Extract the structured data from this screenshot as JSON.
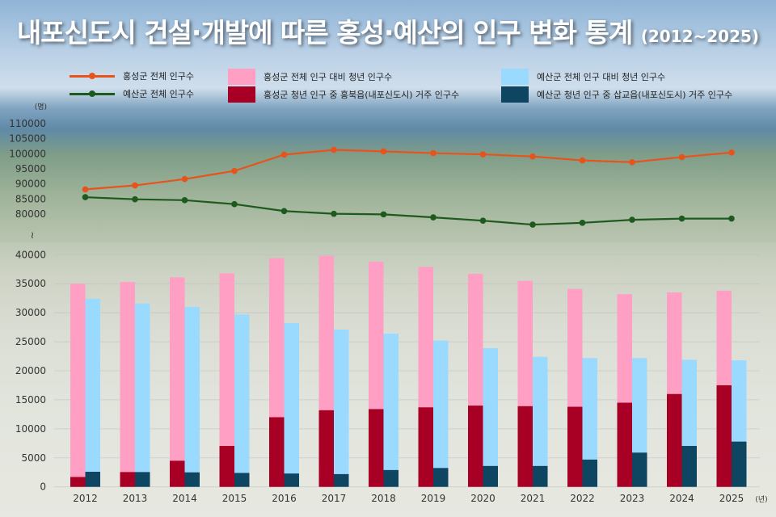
{
  "title": {
    "main": "내포신도시 건설·개발에 따른 홍성·예산의 인구 변화 통계",
    "sub": "(2012~2025)"
  },
  "colors": {
    "hongseong_total": "#e8531c",
    "yesan_total": "#1d5a1e",
    "hongseong_youth": "#ff9fc3",
    "hongbuk": "#a80024",
    "yesan_youth": "#9bdaff",
    "sapgyo": "#0e4560"
  },
  "chart_data": {
    "type": "bar+line",
    "title": "내포신도시 건설·개발에 따른 홍성·예산의 인구 변화 통계 (2012~2025)",
    "y_unit": "(명)",
    "x_unit": "(년)",
    "axis_break_symbol": "≀",
    "categories": [
      "2012",
      "2013",
      "2014",
      "2015",
      "2016",
      "2017",
      "2018",
      "2019",
      "2020",
      "2021",
      "2022",
      "2023",
      "2024",
      "2025"
    ],
    "upper_axis": {
      "ticks": [
        80000,
        85000,
        90000,
        95000,
        100000,
        105000,
        110000
      ],
      "range": [
        80000,
        110000
      ]
    },
    "lower_axis": {
      "ticks": [
        0,
        5000,
        10000,
        15000,
        20000,
        25000,
        30000,
        35000,
        40000
      ],
      "range": [
        0,
        40000
      ]
    },
    "grid": true,
    "legend_position": "top",
    "series": [
      {
        "name": "홍성군 전체 인구수",
        "type": "line",
        "color": "#e8531c",
        "values": [
          88200,
          89500,
          91600,
          94300,
          99700,
          101300,
          100800,
          100200,
          99800,
          99100,
          97800,
          97200,
          98900,
          100400
        ]
      },
      {
        "name": "예산군 전체 인구수",
        "type": "line",
        "color": "#1d5a1e",
        "values": [
          85600,
          84900,
          84600,
          83300,
          81000,
          80100,
          79900,
          78900,
          77800,
          76500,
          77100,
          78100,
          78500,
          78500
        ]
      },
      {
        "name": "홍성군 전체 인구 대비 청년 인구수",
        "type": "bar",
        "color": "#ff9fc3",
        "values": [
          35000,
          35300,
          36100,
          36800,
          39400,
          39800,
          38800,
          37900,
          36700,
          35500,
          34100,
          33200,
          33500,
          33800
        ]
      },
      {
        "name": "홍성군 청년 인구 중 홍북읍(내포신도시) 거주 인구수",
        "type": "bar",
        "color": "#a80024",
        "values": [
          1700,
          2550,
          4500,
          7050,
          12000,
          13200,
          13400,
          13700,
          14000,
          13900,
          13800,
          14500,
          16000,
          17500
        ]
      },
      {
        "name": "예산군 전체 인구 대비 청년 인구수",
        "type": "bar",
        "color": "#9bdaff",
        "values": [
          32400,
          31600,
          31000,
          29700,
          28200,
          27100,
          26400,
          25200,
          23900,
          22400,
          22200,
          22200,
          21900,
          21800
        ]
      },
      {
        "name": "예산군 청년 인구 중 삽교읍(내포신도시) 거주 인구수",
        "type": "bar",
        "color": "#0e4560",
        "values": [
          2600,
          2550,
          2500,
          2400,
          2300,
          2200,
          2900,
          3250,
          3600,
          3600,
          4700,
          5900,
          7050,
          7800
        ]
      }
    ]
  }
}
